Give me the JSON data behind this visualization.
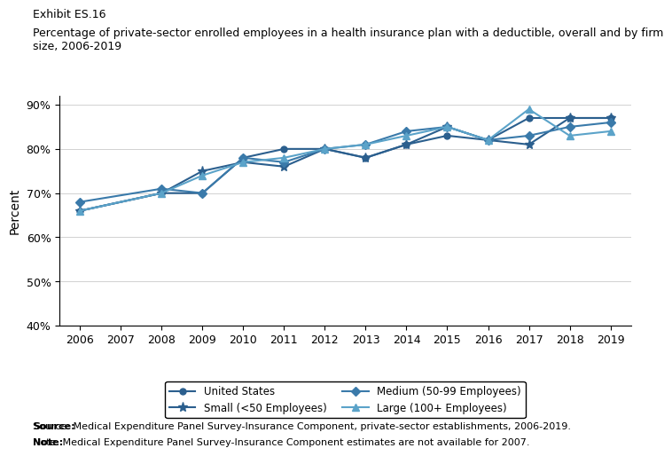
{
  "years": [
    2006,
    2008,
    2009,
    2010,
    2011,
    2012,
    2013,
    2014,
    2015,
    2016,
    2017,
    2018,
    2019
  ],
  "united_states": [
    66,
    70,
    70,
    78,
    80,
    80,
    78,
    81,
    83,
    82,
    87,
    87,
    87
  ],
  "small": [
    66,
    70,
    75,
    77,
    76,
    80,
    78,
    81,
    85,
    82,
    81,
    87,
    87
  ],
  "medium": [
    68,
    71,
    70,
    78,
    77,
    80,
    81,
    84,
    85,
    82,
    83,
    85,
    86
  ],
  "large": [
    66,
    70,
    74,
    77,
    78,
    80,
    81,
    83,
    85,
    82,
    89,
    83,
    84
  ],
  "line_color_dark": "#2b5f8e",
  "line_color_medium": "#3a7aaa",
  "line_color_light": "#5ba3c9",
  "title_exhibit": "Exhibit ES.16",
  "title_main": "Percentage of private-sector enrolled employees in a health insurance plan with a deductible, overall and by firm\nsize, 2006-2019",
  "ylabel": "Percent",
  "ylim": [
    40,
    92
  ],
  "yticks": [
    40,
    50,
    60,
    70,
    80,
    90
  ],
  "ytick_labels": [
    "40%",
    "50%",
    "60%",
    "70%",
    "80%",
    "90%"
  ],
  "source_text": "Source: Medical Expenditure Panel Survey-Insurance Component, private-sector establishments, 2006-2019.",
  "note_text": "Note: Medical Expenditure Panel Survey-Insurance Component estimates are not available for 2007.",
  "legend_items": [
    "United States",
    "Small (<50 Employees)",
    "Medium (50-99 Employees)",
    "Large (100+ Employees)"
  ]
}
